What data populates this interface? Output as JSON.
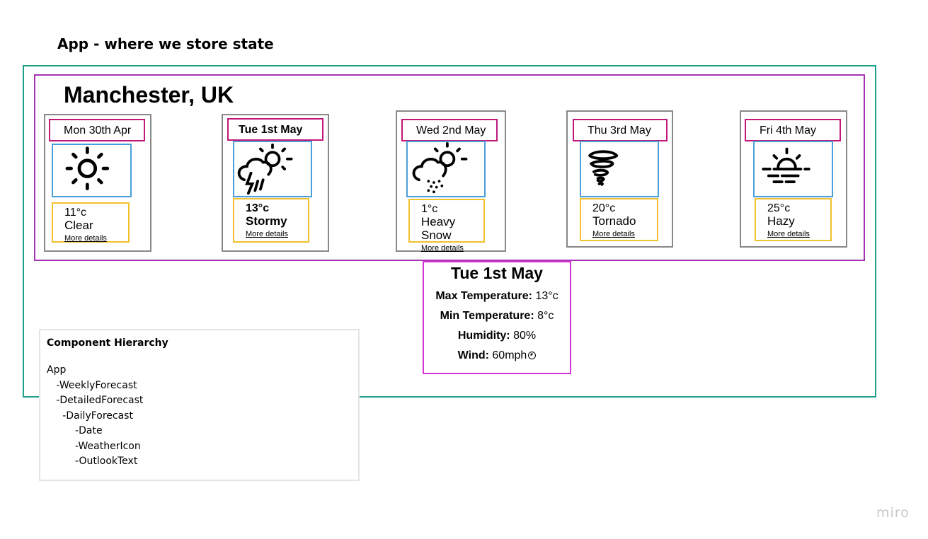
{
  "app_title": "App - where we store state",
  "city": "Manchester, UK",
  "days": [
    {
      "date": "Mon 30th Apr",
      "temp": "11°c",
      "condition": "Clear",
      "more": "More details",
      "icon": "sun-icon",
      "selected": false
    },
    {
      "date": "Tue 1st May",
      "temp": "13°c",
      "condition": "Stormy",
      "more": "More details",
      "icon": "storm-icon",
      "selected": true
    },
    {
      "date": "Wed 2nd May",
      "temp": "1°c",
      "condition": "Heavy Snow",
      "more": "More details",
      "icon": "snow-icon",
      "selected": false
    },
    {
      "date": "Thu 3rd May",
      "temp": "20°c",
      "condition": "Tornado",
      "more": "More details",
      "icon": "tornado-icon",
      "selected": false
    },
    {
      "date": "Fri 4th May",
      "temp": "25°c",
      "condition": "Hazy",
      "more": "More details",
      "icon": "haze-icon",
      "selected": false
    }
  ],
  "detail": {
    "date": "Tue 1st May",
    "max_label": "Max Temperature:",
    "max_value": "13°c",
    "min_label": "Min Temperature:",
    "min_value": "8°c",
    "humidity_label": "Humidity:",
    "humidity_value": "80%",
    "wind_label": "Wind:",
    "wind_value": "60mph",
    "wind_icon": "wind-direction-icon"
  },
  "hierarchy": {
    "title": "Component Hierarchy",
    "lines": [
      "App",
      "   -WeeklyForecast",
      "   -DetailedForecast",
      "     -DailyForecast",
      "         -Date",
      "         -WeatherIcon",
      "         -OutlookText"
    ]
  },
  "watermark": "miro",
  "colors": {
    "app_frame": "#1fa08b",
    "weekly_frame": "#a632b4",
    "date_border": "#c2187a",
    "icon_border": "#4a9fd8",
    "outlook_border": "#f2c12e",
    "detail_border": "#d333d7"
  }
}
